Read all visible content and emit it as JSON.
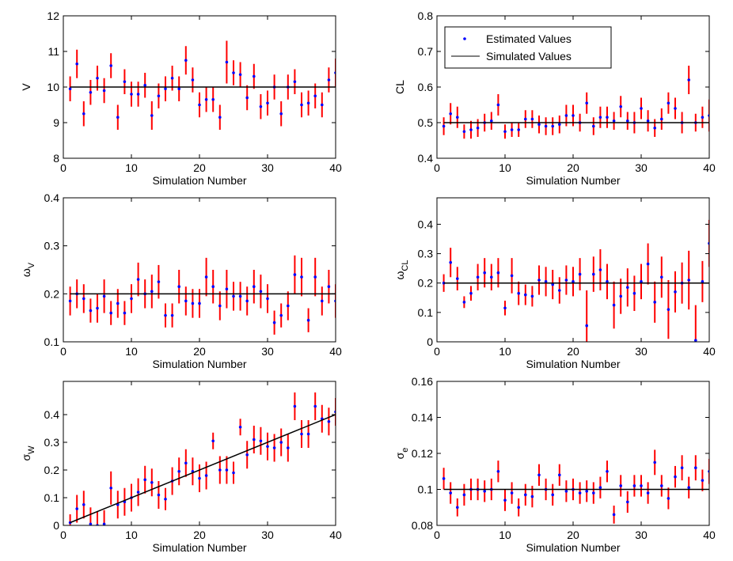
{
  "chart_data": [
    {
      "type": "errorbar",
      "ylabel": "V",
      "xlabel": "Simulation Number",
      "xlim": [
        0,
        40
      ],
      "xticks": [
        0,
        10,
        20,
        30,
        40
      ],
      "ylim": [
        8,
        12
      ],
      "yticks": [
        8,
        9,
        10,
        11,
        12
      ],
      "series": [
        {
          "color": "#0000ff",
          "error_color": "#ff0000",
          "x": [
            1,
            2,
            3,
            4,
            5,
            6,
            7,
            8,
            9,
            10,
            11,
            12,
            13,
            14,
            15,
            16,
            17,
            18,
            19,
            20,
            21,
            22,
            23,
            24,
            25,
            26,
            27,
            28,
            29,
            30,
            31,
            32,
            33,
            34,
            35,
            36,
            37,
            38,
            39,
            40
          ],
          "values": [
            9.95,
            10.65,
            9.25,
            9.85,
            10.25,
            9.9,
            10.6,
            9.15,
            10.15,
            9.8,
            9.8,
            10.05,
            9.2,
            9.75,
            9.95,
            10.25,
            9.95,
            10.75,
            10.2,
            9.5,
            9.65,
            9.65,
            9.15,
            10.7,
            10.4,
            10.35,
            9.7,
            10.3,
            9.45,
            9.55,
            10.0,
            9.25,
            10.0,
            10.15,
            9.5,
            9.55,
            9.75,
            9.5,
            10.2,
            10.4
          ],
          "errors": [
            0.35,
            0.4,
            0.35,
            0.35,
            0.35,
            0.35,
            0.35,
            0.35,
            0.35,
            0.35,
            0.35,
            0.35,
            0.4,
            0.35,
            0.35,
            0.35,
            0.35,
            0.4,
            0.35,
            0.35,
            0.35,
            0.35,
            0.35,
            0.6,
            0.35,
            0.35,
            0.35,
            0.35,
            0.35,
            0.35,
            0.35,
            0.35,
            0.35,
            0.35,
            0.35,
            0.35,
            0.35,
            0.35,
            0.35,
            0.4
          ]
        },
        {
          "color": "#000000",
          "x": [
            1,
            40
          ],
          "values": [
            10,
            10
          ]
        }
      ]
    },
    {
      "type": "errorbar",
      "ylabel": "CL",
      "xlabel": "Simulation Number",
      "xlim": [
        0,
        40
      ],
      "xticks": [
        0,
        10,
        20,
        30,
        40
      ],
      "ylim": [
        0.4,
        0.8
      ],
      "yticks": [
        0.4,
        0.5,
        0.6,
        0.7,
        0.8
      ],
      "legend": "upper left",
      "series": [
        {
          "name": "Estimated Values",
          "color": "#0000ff",
          "error_color": "#ff0000",
          "x": [
            1,
            2,
            3,
            4,
            5,
            6,
            7,
            8,
            9,
            10,
            11,
            12,
            13,
            14,
            15,
            16,
            17,
            18,
            19,
            20,
            21,
            22,
            23,
            24,
            25,
            26,
            27,
            28,
            29,
            30,
            31,
            32,
            33,
            34,
            35,
            36,
            37,
            38,
            39,
            40
          ],
          "values": [
            0.49,
            0.525,
            0.515,
            0.475,
            0.48,
            0.485,
            0.5,
            0.505,
            0.55,
            0.475,
            0.48,
            0.48,
            0.51,
            0.51,
            0.495,
            0.49,
            0.49,
            0.495,
            0.52,
            0.52,
            0.5,
            0.555,
            0.49,
            0.515,
            0.515,
            0.505,
            0.545,
            0.505,
            0.5,
            0.54,
            0.505,
            0.485,
            0.51,
            0.555,
            0.54,
            0.5,
            0.62,
            0.5,
            0.515,
            0.52
          ],
          "errors": [
            0.025,
            0.03,
            0.03,
            0.02,
            0.025,
            0.025,
            0.025,
            0.025,
            0.03,
            0.02,
            0.02,
            0.02,
            0.025,
            0.025,
            0.025,
            0.025,
            0.025,
            0.025,
            0.03,
            0.03,
            0.025,
            0.03,
            0.025,
            0.03,
            0.03,
            0.025,
            0.03,
            0.025,
            0.03,
            0.03,
            0.03,
            0.025,
            0.03,
            0.03,
            0.03,
            0.03,
            0.04,
            0.025,
            0.03,
            0.045
          ]
        },
        {
          "name": "Simulated Values",
          "color": "#000000",
          "x": [
            1,
            40
          ],
          "values": [
            0.5,
            0.5
          ]
        }
      ]
    },
    {
      "type": "errorbar",
      "ylabel": "ω",
      "ylabel_sub": "V",
      "xlabel": "Simulation Number",
      "xlim": [
        0,
        40
      ],
      "xticks": [
        0,
        10,
        20,
        30,
        40
      ],
      "ylim": [
        0.1,
        0.4
      ],
      "yticks": [
        0.1,
        0.2,
        0.3,
        0.4
      ],
      "series": [
        {
          "color": "#0000ff",
          "error_color": "#ff0000",
          "x": [
            1,
            2,
            3,
            4,
            5,
            6,
            7,
            8,
            9,
            10,
            11,
            12,
            13,
            14,
            15,
            16,
            17,
            18,
            19,
            20,
            21,
            22,
            23,
            24,
            25,
            26,
            27,
            28,
            29,
            30,
            31,
            32,
            33,
            34,
            35,
            36,
            37,
            38,
            39,
            40
          ],
          "values": [
            0.185,
            0.2,
            0.19,
            0.165,
            0.17,
            0.195,
            0.16,
            0.18,
            0.16,
            0.19,
            0.23,
            0.2,
            0.205,
            0.225,
            0.155,
            0.155,
            0.215,
            0.185,
            0.18,
            0.18,
            0.235,
            0.215,
            0.175,
            0.21,
            0.195,
            0.195,
            0.185,
            0.215,
            0.205,
            0.19,
            0.14,
            0.155,
            0.175,
            0.24,
            0.235,
            0.145,
            0.235,
            0.185,
            0.215,
            0.185
          ],
          "errors": [
            0.03,
            0.03,
            0.03,
            0.025,
            0.03,
            0.035,
            0.025,
            0.03,
            0.025,
            0.03,
            0.035,
            0.03,
            0.035,
            0.035,
            0.025,
            0.025,
            0.035,
            0.03,
            0.03,
            0.03,
            0.04,
            0.035,
            0.03,
            0.04,
            0.03,
            0.03,
            0.03,
            0.035,
            0.035,
            0.03,
            0.025,
            0.025,
            0.03,
            0.04,
            0.04,
            0.025,
            0.04,
            0.03,
            0.035,
            0.035
          ]
        },
        {
          "color": "#000000",
          "x": [
            1,
            40
          ],
          "values": [
            0.2,
            0.2
          ]
        }
      ]
    },
    {
      "type": "errorbar",
      "ylabel": "ω",
      "ylabel_sub": "CL",
      "xlabel": "Simulation Number",
      "xlim": [
        0,
        40
      ],
      "xticks": [
        0,
        10,
        20,
        30,
        40
      ],
      "ylim": [
        0,
        0.49
      ],
      "yticks": [
        0,
        0.1,
        0.2,
        0.3,
        0.4
      ],
      "series": [
        {
          "color": "#0000ff",
          "error_color": "#ff0000",
          "x": [
            1,
            2,
            3,
            4,
            5,
            6,
            7,
            8,
            9,
            10,
            11,
            12,
            13,
            14,
            15,
            16,
            17,
            18,
            19,
            20,
            21,
            22,
            23,
            24,
            25,
            26,
            27,
            28,
            29,
            30,
            31,
            32,
            33,
            34,
            35,
            36,
            37,
            38,
            39,
            40
          ],
          "values": [
            0.2,
            0.27,
            0.215,
            0.135,
            0.165,
            0.22,
            0.235,
            0.22,
            0.235,
            0.115,
            0.225,
            0.165,
            0.16,
            0.155,
            0.21,
            0.205,
            0.195,
            0.175,
            0.21,
            0.205,
            0.23,
            0.055,
            0.23,
            0.245,
            0.205,
            0.125,
            0.155,
            0.185,
            0.165,
            0.205,
            0.265,
            0.135,
            0.22,
            0.11,
            0.17,
            0.2,
            0.21,
            0.005,
            0.205,
            0.335
          ],
          "errors": [
            0.03,
            0.05,
            0.04,
            0.02,
            0.025,
            0.045,
            0.05,
            0.045,
            0.05,
            0.025,
            0.06,
            0.04,
            0.035,
            0.035,
            0.05,
            0.05,
            0.05,
            0.045,
            0.05,
            0.05,
            0.055,
            0.12,
            0.06,
            0.07,
            0.06,
            0.08,
            0.06,
            0.065,
            0.06,
            0.06,
            0.07,
            0.07,
            0.07,
            0.1,
            0.07,
            0.07,
            0.1,
            0.12,
            0.07,
            0.08
          ]
        },
        {
          "color": "#000000",
          "x": [
            1,
            40
          ],
          "values": [
            0.2,
            0.2
          ]
        }
      ]
    },
    {
      "type": "errorbar",
      "ylabel": "σ",
      "ylabel_sub": "W",
      "xlabel": "Simulation Number",
      "xlim": [
        0,
        40
      ],
      "xticks": [
        0,
        10,
        20,
        30,
        40
      ],
      "ylim": [
        0,
        0.52
      ],
      "yticks": [
        0,
        0.1,
        0.2,
        0.3,
        0.4
      ],
      "series": [
        {
          "color": "#0000ff",
          "error_color": "#ff0000",
          "x": [
            1,
            2,
            3,
            4,
            5,
            6,
            7,
            8,
            9,
            10,
            11,
            12,
            13,
            14,
            15,
            16,
            17,
            18,
            19,
            20,
            21,
            22,
            23,
            24,
            25,
            26,
            27,
            28,
            29,
            30,
            31,
            32,
            33,
            34,
            35,
            36,
            37,
            38,
            39,
            40
          ],
          "values": [
            0.01,
            0.06,
            0.075,
            0.005,
            0,
            0.005,
            0.135,
            0.075,
            0.085,
            0.1,
            0.12,
            0.165,
            0.155,
            0.11,
            0.095,
            0.16,
            0.195,
            0.225,
            0.195,
            0.17,
            0.18,
            0.305,
            0.2,
            0.2,
            0.19,
            0.355,
            0.255,
            0.31,
            0.305,
            0.285,
            0.28,
            0.3,
            0.28,
            0.43,
            0.33,
            0.33,
            0.43,
            0.385,
            0.375,
            0.41
          ],
          "errors": [
            0.03,
            0.05,
            0.05,
            0.06,
            0.05,
            0.05,
            0.06,
            0.05,
            0.05,
            0.05,
            0.05,
            0.05,
            0.05,
            0.05,
            0.04,
            0.05,
            0.05,
            0.05,
            0.05,
            0.05,
            0.05,
            0.03,
            0.05,
            0.05,
            0.04,
            0.03,
            0.05,
            0.05,
            0.05,
            0.05,
            0.05,
            0.05,
            0.05,
            0.05,
            0.05,
            0.05,
            0.05,
            0.05,
            0.05,
            0.05
          ]
        },
        {
          "color": "#000000",
          "x": [
            1,
            40
          ],
          "values": [
            0.01,
            0.4
          ]
        }
      ]
    },
    {
      "type": "errorbar",
      "ylabel": "σ",
      "ylabel_sub": "e",
      "xlabel": "Simulation Number",
      "xlim": [
        0,
        40
      ],
      "xticks": [
        0,
        10,
        20,
        30,
        40
      ],
      "ylim": [
        0.08,
        0.16
      ],
      "yticks": [
        0.08,
        0.1,
        0.12,
        0.14,
        0.16
      ],
      "series": [
        {
          "color": "#0000ff",
          "error_color": "#ff0000",
          "x": [
            1,
            2,
            3,
            4,
            5,
            6,
            7,
            8,
            9,
            10,
            11,
            12,
            13,
            14,
            15,
            16,
            17,
            18,
            19,
            20,
            21,
            22,
            23,
            24,
            25,
            26,
            27,
            28,
            29,
            30,
            31,
            32,
            33,
            34,
            35,
            36,
            37,
            38,
            39,
            40
          ],
          "values": [
            0.106,
            0.098,
            0.09,
            0.097,
            0.1,
            0.1,
            0.099,
            0.1,
            0.11,
            0.094,
            0.098,
            0.09,
            0.097,
            0.096,
            0.108,
            0.1,
            0.097,
            0.108,
            0.099,
            0.1,
            0.098,
            0.099,
            0.098,
            0.101,
            0.11,
            0.086,
            0.102,
            0.093,
            0.102,
            0.102,
            0.098,
            0.115,
            0.102,
            0.095,
            0.107,
            0.112,
            0.101,
            0.112,
            0.105,
            0.11
          ],
          "errors": [
            0.006,
            0.006,
            0.005,
            0.006,
            0.006,
            0.006,
            0.006,
            0.006,
            0.006,
            0.006,
            0.006,
            0.005,
            0.006,
            0.006,
            0.006,
            0.006,
            0.006,
            0.006,
            0.006,
            0.006,
            0.006,
            0.006,
            0.006,
            0.006,
            0.006,
            0.005,
            0.006,
            0.006,
            0.006,
            0.006,
            0.006,
            0.007,
            0.006,
            0.006,
            0.006,
            0.007,
            0.006,
            0.007,
            0.006,
            0.007
          ]
        },
        {
          "color": "#000000",
          "x": [
            1,
            40
          ],
          "values": [
            0.1,
            0.1
          ]
        }
      ]
    }
  ]
}
